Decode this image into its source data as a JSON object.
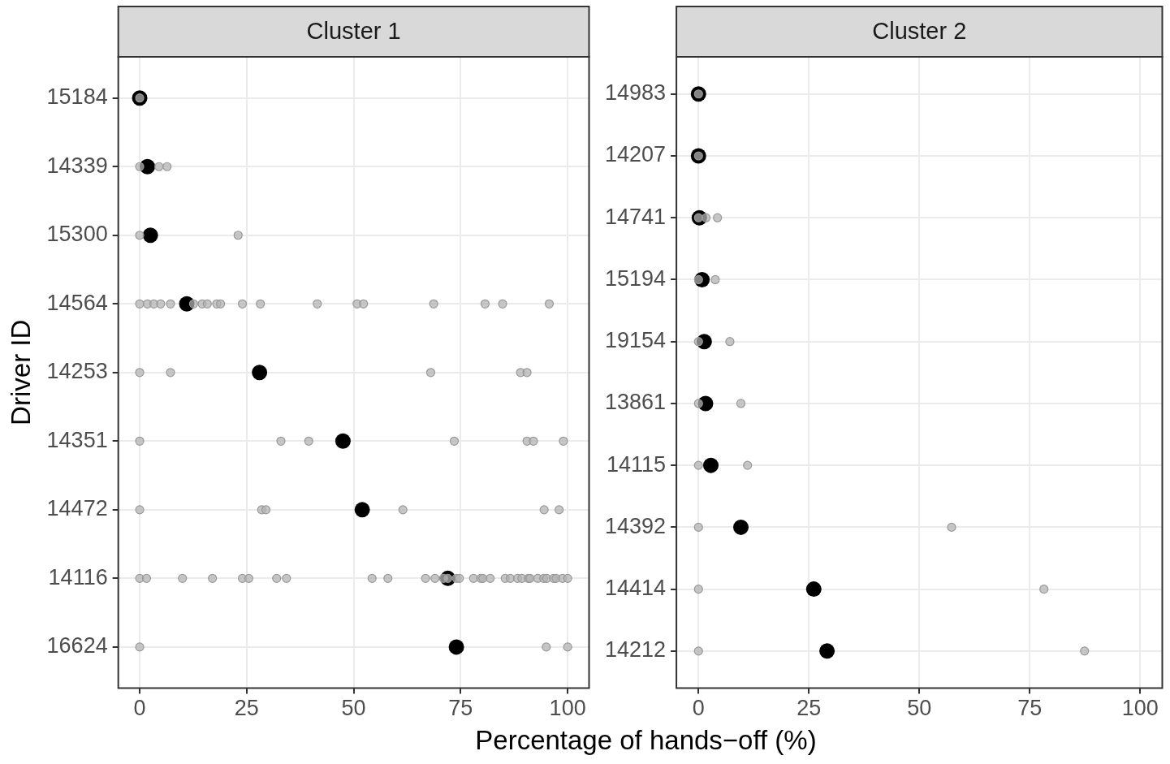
{
  "chart_data": [
    {
      "type": "scatter",
      "orientation": "horizontal",
      "title": "Cluster 1",
      "xlabel": "Percentage of hands−off (%)",
      "ylabel": "Driver ID",
      "categories": [
        "15184",
        "14339",
        "15300",
        "14564",
        "14253",
        "14351",
        "14472",
        "14116",
        "16624"
      ],
      "xlim": [
        -5,
        105
      ],
      "xticks": [
        0,
        25,
        50,
        75,
        100
      ],
      "grid": true,
      "marker": "circle",
      "series": [
        {
          "type": "scatter",
          "color": "#b3b3b3",
          "x": [
            "15184",
            "14339",
            "14339",
            "14339",
            "15300",
            "15300",
            "14564",
            "14564",
            "14564",
            "14564",
            "14564",
            "14564",
            "14564",
            "14564",
            "14564",
            "14564",
            "14564",
            "14564",
            "14564",
            "14564",
            "14564",
            "14564",
            "14564",
            "14564",
            "14564",
            "14253",
            "14253",
            "14253",
            "14253",
            "14253",
            "14351",
            "14351",
            "14351",
            "14351",
            "14351",
            "14351",
            "14351",
            "14472",
            "14472",
            "14472",
            "14472",
            "14472",
            "14472",
            "14116",
            "14116",
            "14116",
            "14116",
            "14116",
            "14116",
            "14116",
            "14116",
            "14116",
            "14116",
            "14116",
            "14116",
            "14116",
            "14116",
            "14116",
            "14116",
            "14116",
            "14116",
            "14116",
            "14116",
            "14116",
            "14116",
            "14116",
            "14116",
            "14116",
            "14116",
            "14116",
            "14116",
            "14116",
            "14116",
            "14116",
            "14116",
            "14116",
            "16624",
            "16624",
            "16624"
          ],
          "values": [
            0,
            0,
            4.5,
            6.4,
            0,
            23,
            0,
            1.8,
            3.3,
            4.9,
            7.2,
            12.6,
            14.6,
            15.8,
            18,
            18.9,
            24,
            28.2,
            41.5,
            50.8,
            52.3,
            68.7,
            80.7,
            84.8,
            95.7,
            0,
            7.2,
            68,
            89,
            90.5,
            0,
            33,
            39.5,
            73.5,
            90.5,
            92,
            99,
            0,
            28.5,
            29.5,
            61.5,
            94.5,
            98,
            0,
            1.6,
            10,
            17,
            24,
            25.5,
            32,
            34.3,
            54.3,
            58,
            66.8,
            69,
            71,
            72,
            74,
            74.7,
            78,
            79.7,
            80.2,
            81.9,
            85.4,
            86.6,
            88.3,
            89.3,
            90.8,
            91.2,
            93,
            94.4,
            95.1,
            96.7,
            97.3,
            98.8,
            100,
            0,
            95,
            100
          ]
        },
        {
          "type": "scatter",
          "color": "#000000",
          "values": [
            0,
            1.8,
            2.5,
            11,
            28,
            47.5,
            52,
            72,
            74
          ]
        }
      ]
    },
    {
      "type": "scatter",
      "orientation": "horizontal",
      "title": "Cluster 2",
      "categories": [
        "14983",
        "14207",
        "14741",
        "15194",
        "19154",
        "13861",
        "14115",
        "14392",
        "14414",
        "14212"
      ],
      "xlim": [
        -5,
        105
      ],
      "xticks": [
        0,
        25,
        50,
        75,
        100
      ],
      "grid": true,
      "marker": "circle",
      "series": [
        {
          "type": "scatter",
          "color": "#b3b3b3",
          "x": [
            "14983",
            "14207",
            "14741",
            "14741",
            "14741",
            "15194",
            "15194",
            "19154",
            "19154",
            "13861",
            "13861",
            "14115",
            "14115",
            "14392",
            "14392",
            "14414",
            "14414",
            "14212",
            "14212"
          ],
          "values": [
            0,
            0,
            0,
            1.7,
            4.3,
            0,
            3.8,
            0,
            7.1,
            0,
            9.6,
            0,
            11.1,
            0,
            57.3,
            0,
            78.2,
            0,
            87.4
          ]
        },
        {
          "type": "scatter",
          "color": "#000000",
          "values": [
            0,
            0,
            0.2,
            0.8,
            1.3,
            1.6,
            2.8,
            9.6,
            26.1,
            29.1
          ]
        }
      ]
    }
  ]
}
